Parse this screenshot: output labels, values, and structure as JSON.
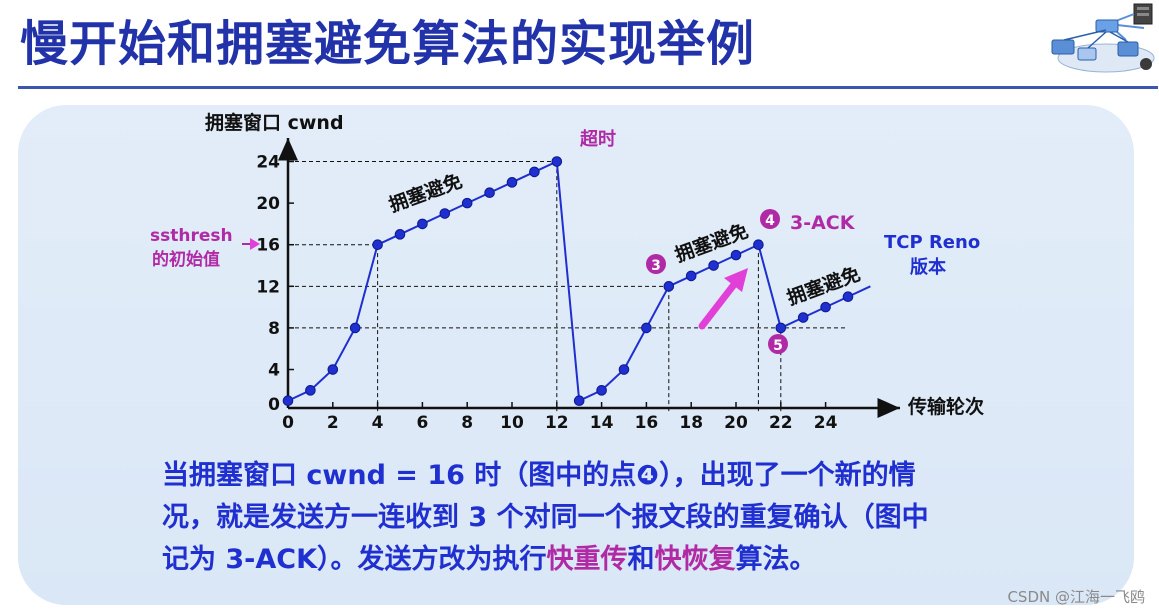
{
  "page": {
    "title": "慢开始和拥塞避免算法的实现举例",
    "watermark": "CSDN @江海一飞鸥"
  },
  "description": {
    "line1": "当拥塞窗口 cwnd = 16 时（图中的点❹），出现了一个新的情",
    "line2": "况，就是发送方一连收到 3 个对同一个报文段的重复确认（图中",
    "line3_a": "记为 3-ACK）。发送方改为执行",
    "line3_hl1": "快重传",
    "line3_b": "和",
    "line3_hl2": "快恢复",
    "line3_c": "算法。"
  },
  "chart_data": {
    "type": "line",
    "ylabel": "拥塞窗口  cwnd",
    "xlabel": "传输轮次",
    "xlim": [
      0,
      26
    ],
    "ylim": [
      0,
      26
    ],
    "xticks": [
      0,
      2,
      4,
      6,
      8,
      10,
      12,
      14,
      16,
      18,
      20,
      22,
      24
    ],
    "yticks": [
      0,
      4,
      8,
      12,
      16,
      20,
      24
    ],
    "series": [
      {
        "x": [
          0,
          1,
          2,
          3,
          4,
          5,
          6,
          7,
          8,
          9,
          10,
          11,
          12,
          13,
          14,
          15,
          16,
          17,
          18,
          19,
          20,
          21,
          22,
          23,
          24,
          25
        ],
        "y": [
          1,
          2,
          4,
          8,
          16,
          17,
          18,
          19,
          20,
          21,
          22,
          23,
          24,
          1,
          2,
          4,
          8,
          12,
          13,
          14,
          15,
          16,
          8,
          9,
          10,
          11
        ]
      }
    ],
    "extended_line_to": {
      "x": 26,
      "y": 12
    },
    "guides": [
      {
        "from": [
          0,
          24
        ],
        "to": [
          12,
          24
        ]
      },
      {
        "from": [
          0,
          16
        ],
        "to": [
          4,
          16
        ]
      },
      {
        "from": [
          0,
          12
        ],
        "to": [
          17,
          12
        ]
      },
      {
        "from": [
          0,
          8
        ],
        "to": [
          25,
          8
        ]
      },
      {
        "from": [
          4,
          0
        ],
        "to": [
          4,
          16
        ]
      },
      {
        "from": [
          12,
          0
        ],
        "to": [
          12,
          24
        ]
      },
      {
        "from": [
          17,
          0
        ],
        "to": [
          17,
          12
        ]
      },
      {
        "from": [
          21,
          0
        ],
        "to": [
          21,
          16
        ]
      },
      {
        "from": [
          22,
          0
        ],
        "to": [
          22,
          8
        ]
      }
    ],
    "annotations": {
      "ssthresh_line1": "ssthresh",
      "ssthresh_line2": "的初始值",
      "timeout": "超时",
      "ca_label": "拥塞避免",
      "marker3": "3",
      "marker4": "4",
      "ack_label": "3-ACK",
      "marker5": "5",
      "reno_line1": "TCP Reno",
      "reno_line2": "版本"
    },
    "colors": {
      "line": "#1f2fd0",
      "point": "#1f2fd0",
      "accent": "#b02aa6",
      "arrow": "#e040d8",
      "axis": "#111111"
    }
  }
}
